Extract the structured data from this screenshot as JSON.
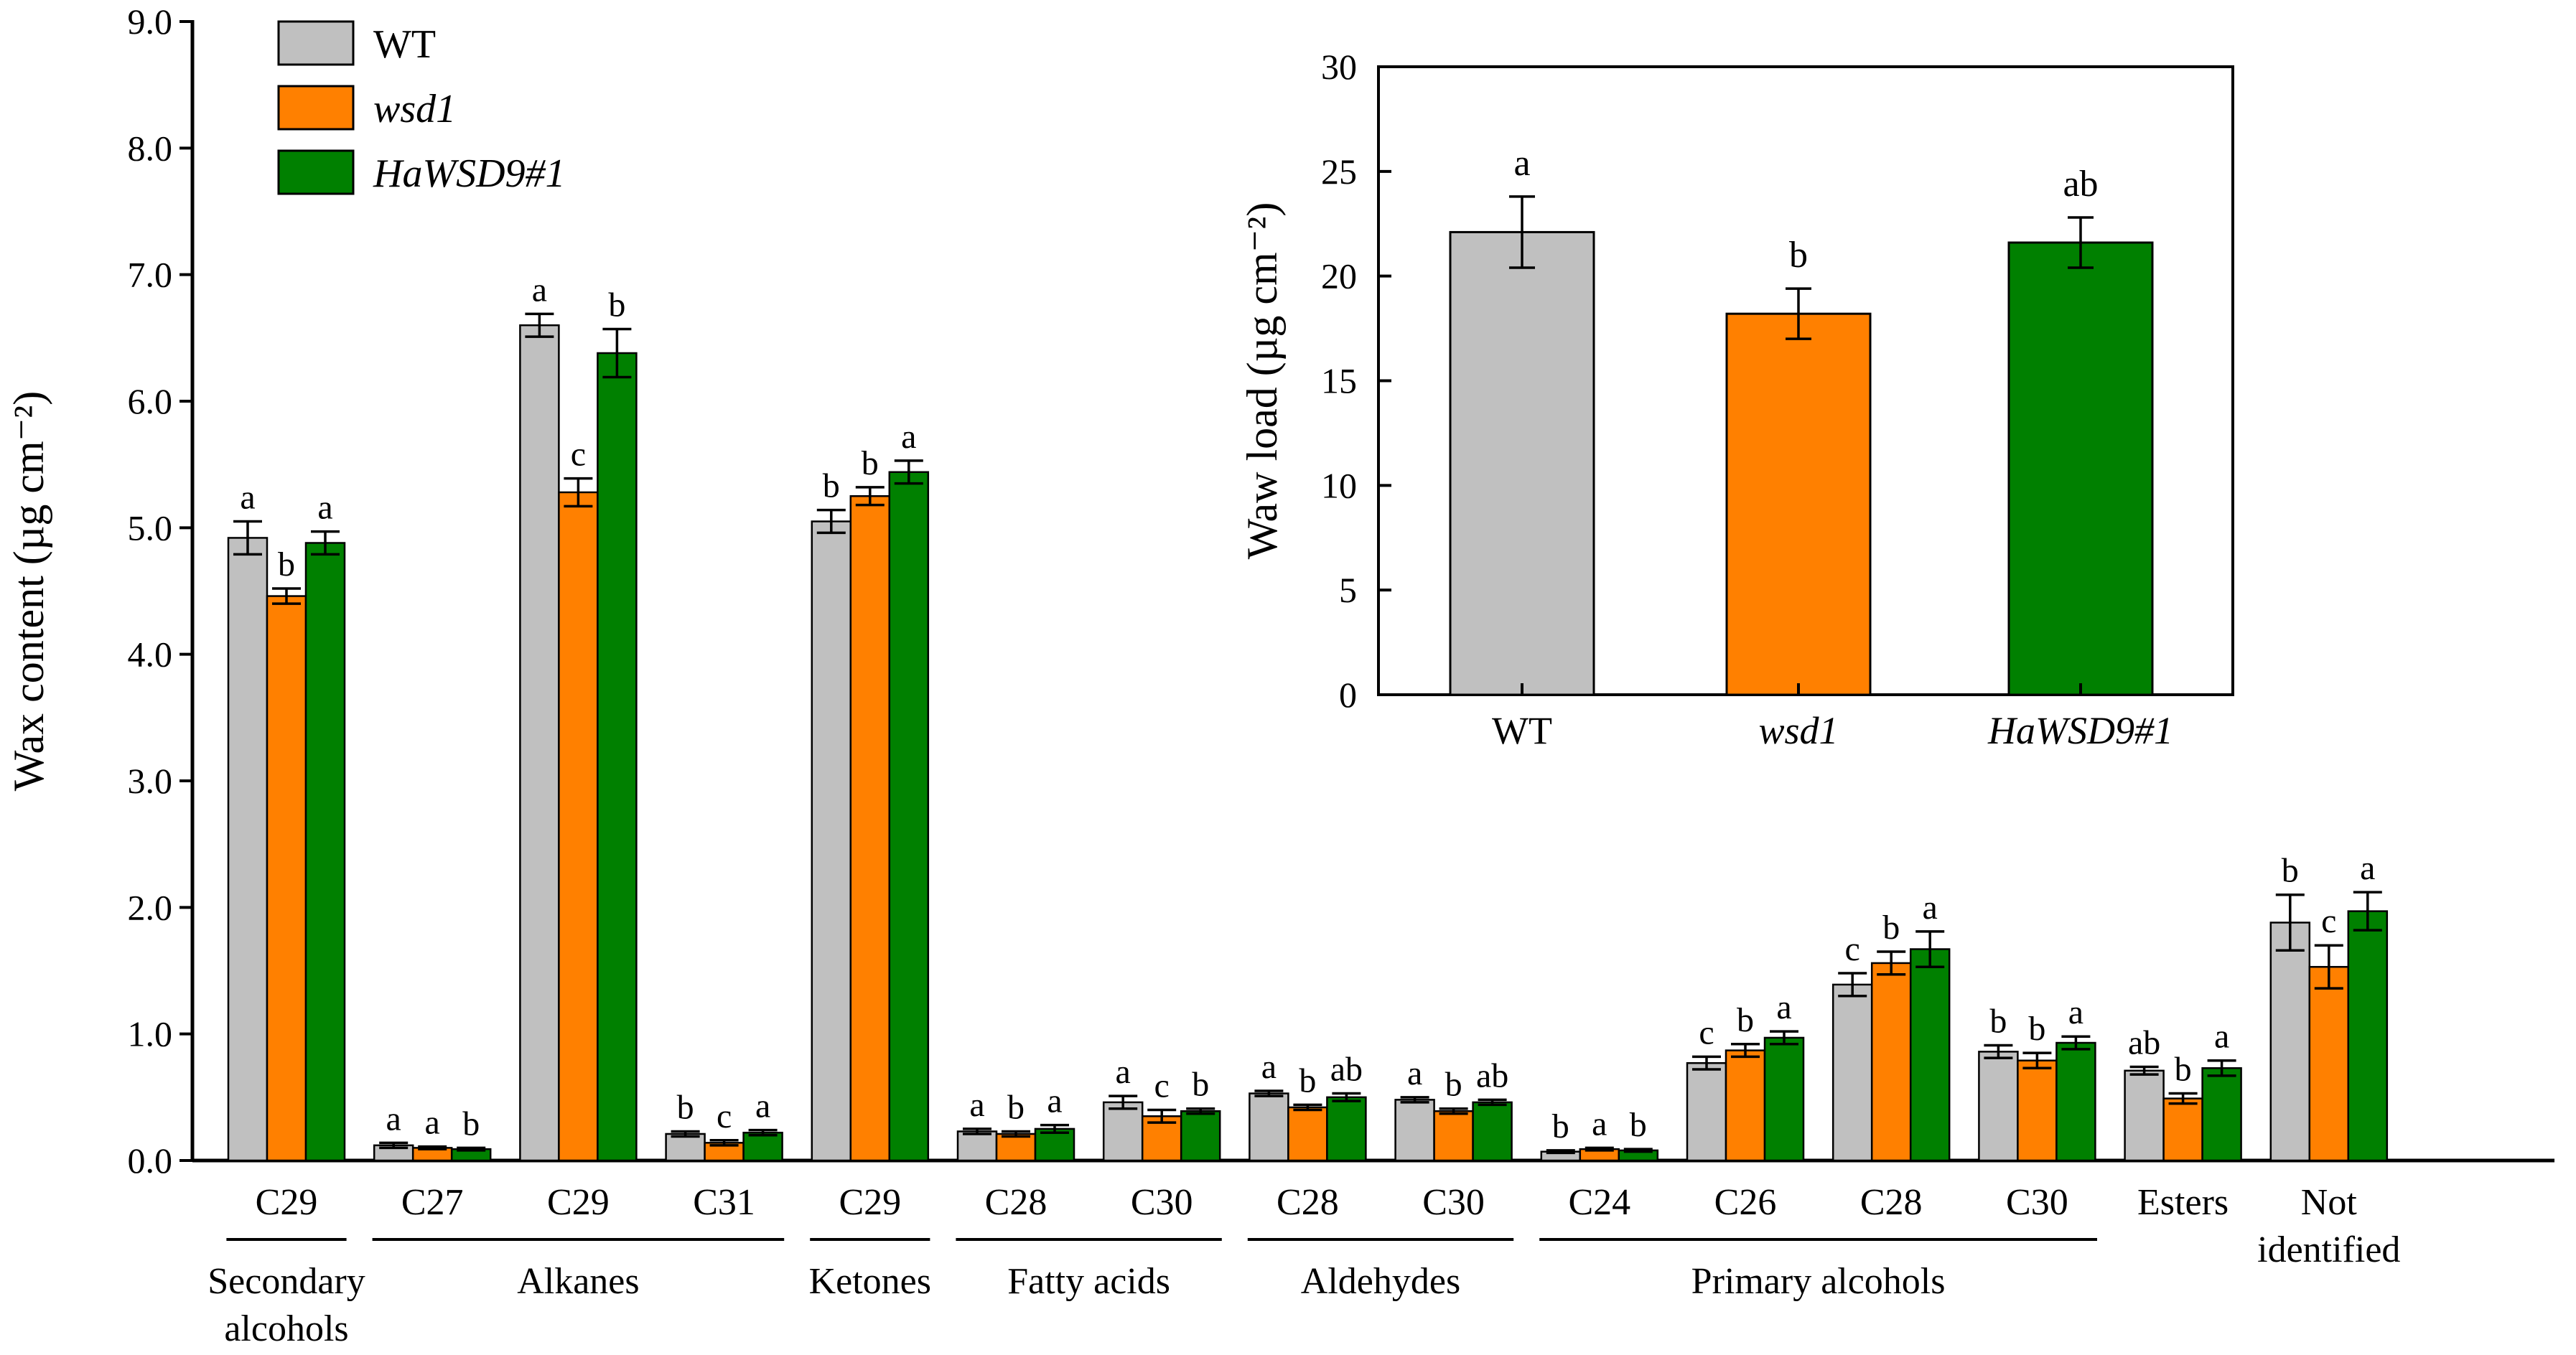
{
  "colors": {
    "WT": "#c0c0c0",
    "wsd1": "#ff8000",
    "HaWSD9#1": "#008000"
  },
  "chart_data": [
    {
      "type": "bar",
      "ylabel": "Wax content (µg cm⁻²)",
      "ylim": [
        0,
        9
      ],
      "yticks": [
        "0.0",
        "1.0",
        "2.0",
        "3.0",
        "4.0",
        "5.0",
        "6.0",
        "7.0",
        "8.0",
        "9.0"
      ],
      "legend": [
        {
          "key": "WT",
          "label": "WT",
          "italic": false
        },
        {
          "key": "wsd1",
          "label": "wsd1",
          "italic": true
        },
        {
          "key": "HaWSD9#1",
          "label": "HaWSD9#1",
          "italic": true
        }
      ],
      "legend_position": "top-left",
      "categories": [
        "C29",
        "C27",
        "C29",
        "C31",
        "C29",
        "C28",
        "C30",
        "C28",
        "C30",
        "C24",
        "C26",
        "C28",
        "C30",
        "Esters",
        "Not identified"
      ],
      "category_lines": [
        [
          "C29"
        ],
        [
          "C27"
        ],
        [
          "C29"
        ],
        [
          "C31"
        ],
        [
          "C29"
        ],
        [
          "C28"
        ],
        [
          "C30"
        ],
        [
          "C28"
        ],
        [
          "C30"
        ],
        [
          "C24"
        ],
        [
          "C26"
        ],
        [
          "C28"
        ],
        [
          "C30"
        ],
        [
          "Esters"
        ],
        [
          "Not",
          "identified"
        ]
      ],
      "groups": [
        {
          "lines": [
            "Secondary",
            "alcohols"
          ],
          "from": 0,
          "to": 0
        },
        {
          "lines": [
            "Alkanes"
          ],
          "from": 1,
          "to": 3
        },
        {
          "lines": [
            "Ketones"
          ],
          "from": 4,
          "to": 4
        },
        {
          "lines": [
            "Fatty acids"
          ],
          "from": 5,
          "to": 6
        },
        {
          "lines": [
            "Aldehydes"
          ],
          "from": 7,
          "to": 8
        },
        {
          "lines": [
            "Primary alcohols"
          ],
          "from": 9,
          "to": 12
        }
      ],
      "series": [
        {
          "name": "WT",
          "values": [
            4.92,
            0.12,
            6.6,
            0.21,
            5.05,
            0.23,
            0.46,
            0.53,
            0.48,
            0.07,
            0.77,
            1.39,
            0.86,
            0.71,
            1.88
          ],
          "errors": [
            0.13,
            0.02,
            0.09,
            0.02,
            0.09,
            0.02,
            0.05,
            0.02,
            0.02,
            0.01,
            0.05,
            0.09,
            0.05,
            0.03,
            0.22
          ],
          "letters": [
            "a",
            "a",
            "a",
            "b",
            "b",
            "a",
            "a",
            "a",
            "a",
            "b",
            "c",
            "c",
            "b",
            "ab",
            "b"
          ]
        },
        {
          "name": "wsd1",
          "values": [
            4.46,
            0.1,
            5.28,
            0.14,
            5.25,
            0.21,
            0.35,
            0.42,
            0.39,
            0.09,
            0.87,
            1.56,
            0.79,
            0.49,
            1.53
          ],
          "errors": [
            0.06,
            0.01,
            0.11,
            0.02,
            0.07,
            0.02,
            0.05,
            0.02,
            0.02,
            0.01,
            0.05,
            0.09,
            0.06,
            0.04,
            0.17
          ],
          "letters": [
            "b",
            "a",
            "c",
            "c",
            "b",
            "b",
            "c",
            "b",
            "b",
            "a",
            "b",
            "b",
            "b",
            "b",
            "c"
          ]
        },
        {
          "name": "HaWSD9#1",
          "values": [
            4.88,
            0.09,
            6.38,
            0.22,
            5.44,
            0.25,
            0.39,
            0.5,
            0.46,
            0.08,
            0.97,
            1.67,
            0.93,
            0.73,
            1.97
          ],
          "errors": [
            0.09,
            0.01,
            0.19,
            0.02,
            0.09,
            0.03,
            0.02,
            0.03,
            0.02,
            0.01,
            0.05,
            0.14,
            0.05,
            0.06,
            0.15
          ],
          "letters": [
            "a",
            "b",
            "b",
            "a",
            "a",
            "a",
            "b",
            "ab",
            "ab",
            "b",
            "a",
            "a",
            "a",
            "a",
            "a"
          ]
        }
      ]
    },
    {
      "type": "bar",
      "ylabel": "Waw load (µg cm⁻²)",
      "ylim": [
        0,
        30
      ],
      "yticks": [
        "0",
        "5",
        "10",
        "15",
        "20",
        "25",
        "30"
      ],
      "categories": [
        "WT",
        "wsd1",
        "HaWSD9#1"
      ],
      "italic": [
        false,
        true,
        true
      ],
      "values": [
        22.1,
        18.2,
        21.6
      ],
      "errors": [
        1.7,
        1.2,
        1.2
      ],
      "letters": [
        "a",
        "b",
        "ab"
      ]
    }
  ]
}
